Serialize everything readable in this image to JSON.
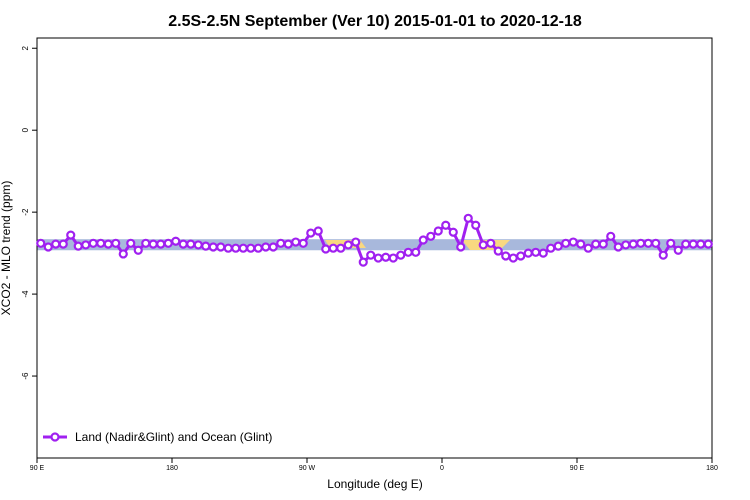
{
  "chart_data": {
    "type": "line",
    "title": "2.5S-2.5N September (Ver 10)   2015-01-01 to 2020-12-18",
    "x_label": "Longitude (deg E)",
    "y_label": "XCO2 - MLO trend (ppm)",
    "xlim": [
      90,
      540
    ],
    "ylim": [
      -8,
      2.25
    ],
    "xticks": [
      {
        "value": 90,
        "label": "90 E"
      },
      180,
      {
        "value": 270,
        "label": "90 W"
      },
      {
        "value": 360,
        "label": "0"
      },
      {
        "value": 450,
        "label": "90 E"
      },
      {
        "value": 540,
        "label": "180"
      }
    ],
    "yticks": [
      2,
      0,
      -2,
      -4,
      -6
    ],
    "band": {
      "color": "#a8b8dc",
      "range": [
        -2.66,
        -2.93
      ]
    },
    "legend": "bottom-left",
    "x": [
      92.5,
      97.5,
      102.5,
      107.5,
      112.5,
      117.5,
      122.5,
      127.5,
      132.5,
      137.5,
      142.5,
      147.5,
      152.5,
      157.5,
      162.5,
      167.5,
      172.5,
      177.5,
      182.5,
      187.5,
      192.5,
      197.5,
      202.5,
      207.5,
      212.5,
      217.5,
      222.5,
      227.5,
      232.5,
      237.5,
      242.5,
      247.5,
      252.5,
      257.5,
      262.5,
      267.5,
      272.5,
      277.5,
      282.5,
      287.5,
      292.5,
      297.5,
      302.5,
      307.5,
      312.5,
      317.5,
      322.5,
      327.5,
      332.5,
      337.5,
      342.5,
      347.5,
      352.5,
      357.5,
      362.5,
      367.5,
      372.5,
      377.5,
      382.5,
      387.5,
      392.5,
      397.5,
      402.5,
      407.5,
      412.5,
      417.5,
      422.5,
      427.5,
      432.5,
      437.5,
      442.5,
      447.5,
      452.5,
      457.5,
      462.5,
      467.5,
      472.5,
      477.5,
      482.5,
      487.5,
      492.5,
      497.5,
      502.5,
      507.5,
      512.5,
      517.5,
      522.5,
      527.5,
      532.5,
      537.5
    ],
    "series": [
      {
        "name": "Land (Nadir&Glint) and Ocean (Glint)",
        "color": "#a020f0",
        "values": [
          -2.76,
          -2.85,
          -2.78,
          -2.78,
          -2.56,
          -2.83,
          -2.8,
          -2.76,
          -2.76,
          -2.78,
          -2.76,
          -3.02,
          -2.76,
          -2.93,
          -2.76,
          -2.78,
          -2.78,
          -2.76,
          -2.71,
          -2.78,
          -2.78,
          -2.8,
          -2.83,
          -2.85,
          -2.85,
          -2.88,
          -2.88,
          -2.88,
          -2.88,
          -2.88,
          -2.85,
          -2.85,
          -2.76,
          -2.78,
          -2.73,
          -2.76,
          -2.51,
          -2.46,
          -2.9,
          -2.88,
          -2.88,
          -2.8,
          -2.73,
          -3.22,
          -3.05,
          -3.12,
          -3.1,
          -3.12,
          -3.05,
          -2.98,
          -2.98,
          -2.68,
          -2.59,
          -2.46,
          -2.32,
          -2.49,
          -2.85,
          -2.15,
          -2.32,
          -2.8,
          -2.76,
          -2.95,
          -3.07,
          -3.12,
          -3.07,
          -3.0,
          -2.98,
          -3.0,
          -2.88,
          -2.83,
          -2.76,
          -2.73,
          -2.78,
          -2.88,
          -2.78,
          -2.78,
          -2.59,
          -2.85,
          -2.8,
          -2.78,
          -2.76,
          -2.76,
          -2.76,
          -3.05,
          -2.76,
          -2.93,
          -2.78,
          -2.78,
          -2.78,
          -2.78
        ]
      }
    ]
  }
}
